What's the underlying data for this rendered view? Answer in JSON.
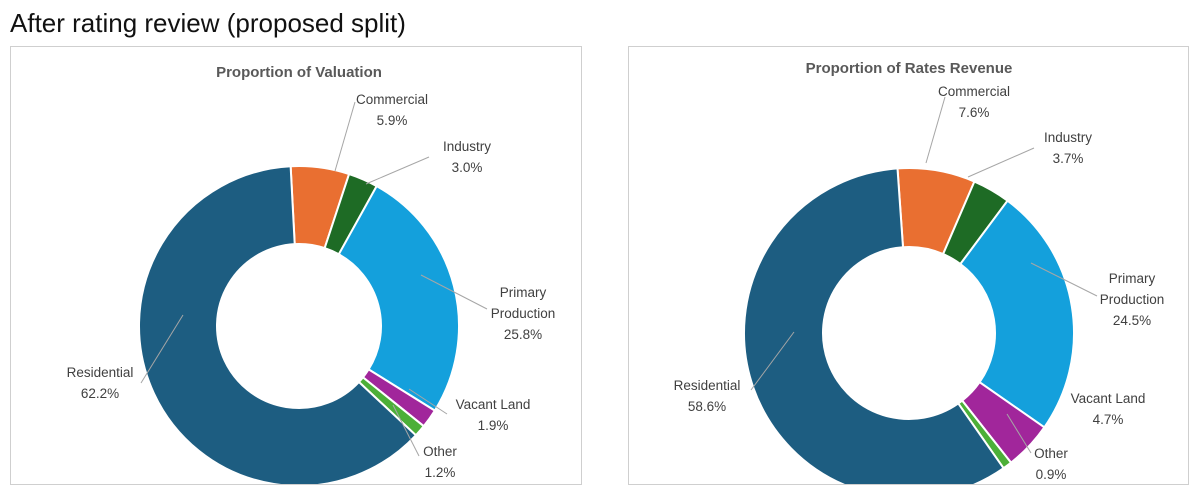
{
  "heading": "After rating review (proposed split)",
  "chart_data": [
    {
      "type": "pie",
      "variant": "donut",
      "title": "Proportion of Valuation",
      "legend": "none (data labels with leader lines)",
      "slices": [
        {
          "name": "Residential",
          "value": 62.2,
          "label": "62.2%",
          "color": "#1d5d81"
        },
        {
          "name": "Commercial",
          "value": 5.9,
          "label": "5.9%",
          "color": "#e96f31"
        },
        {
          "name": "Industry",
          "value": 3.0,
          "label": "3.0%",
          "color": "#1e6b25"
        },
        {
          "name": "Primary Production",
          "value": 25.8,
          "label": "25.8%",
          "color": "#14a0dc"
        },
        {
          "name": "Vacant Land",
          "value": 1.9,
          "label": "1.9%",
          "color": "#a1269b"
        },
        {
          "name": "Other",
          "value": 1.2,
          "label": "1.2%",
          "color": "#4caf38"
        }
      ]
    },
    {
      "type": "pie",
      "variant": "donut",
      "title": "Proportion of Rates Revenue",
      "legend": "none (data labels with leader lines)",
      "slices": [
        {
          "name": "Residential",
          "value": 58.6,
          "label": "58.6%",
          "color": "#1d5d81"
        },
        {
          "name": "Commercial",
          "value": 7.6,
          "label": "7.6%",
          "color": "#e96f31"
        },
        {
          "name": "Industry",
          "value": 3.7,
          "label": "3.7%",
          "color": "#1e6b25"
        },
        {
          "name": "Primary Production",
          "value": 24.5,
          "label": "24.5%",
          "color": "#14a0dc"
        },
        {
          "name": "Vacant Land",
          "value": 4.7,
          "label": "4.7%",
          "color": "#a1269b"
        },
        {
          "name": "Other",
          "value": 0.9,
          "label": "0.9%",
          "color": "#4caf38"
        }
      ]
    }
  ]
}
